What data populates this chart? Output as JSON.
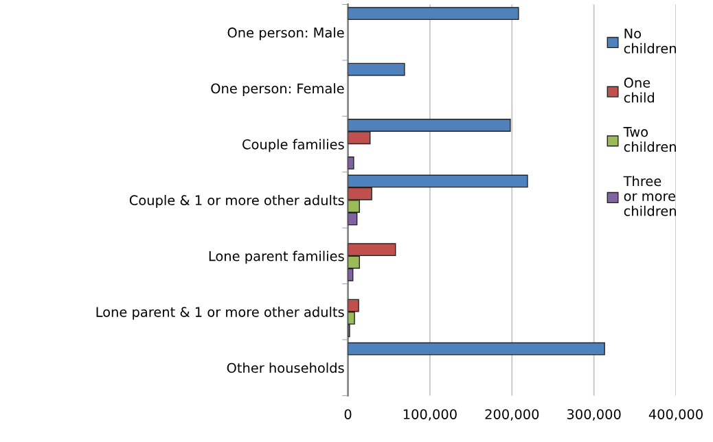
{
  "chart_data": {
    "type": "bar",
    "orientation": "horizontal",
    "categories": [
      "One person: Male",
      "One person: Female",
      "Couple families",
      "Couple & 1 or more other adults",
      "Lone parent families",
      "Lone parent & 1 or more other adults",
      "Other households"
    ],
    "series": [
      {
        "name": "No children",
        "color": "#4f81bd",
        "values": [
          208000,
          69000,
          198000,
          219000,
          null,
          null,
          313000
        ]
      },
      {
        "name": "One child",
        "color": "#c0504d",
        "values": [
          null,
          null,
          27000,
          29000,
          58000,
          13000,
          null
        ]
      },
      {
        "name": "Two children",
        "color": "#9bbb59",
        "values": [
          null,
          null,
          null,
          14000,
          14000,
          8000,
          null
        ]
      },
      {
        "name": "Three or more children",
        "color": "#8064a2",
        "values": [
          null,
          null,
          7000,
          11000,
          6000,
          2000,
          null
        ]
      }
    ],
    "xlim": [
      0,
      400000
    ],
    "xticks": [
      {
        "value": 0,
        "label": "0"
      },
      {
        "value": 100000,
        "label": "100,000"
      },
      {
        "value": 200000,
        "label": "200,000"
      },
      {
        "value": 300000,
        "label": "300,000"
      },
      {
        "value": 400000,
        "label": "400,000"
      }
    ],
    "grid": "x",
    "legend": "right"
  }
}
